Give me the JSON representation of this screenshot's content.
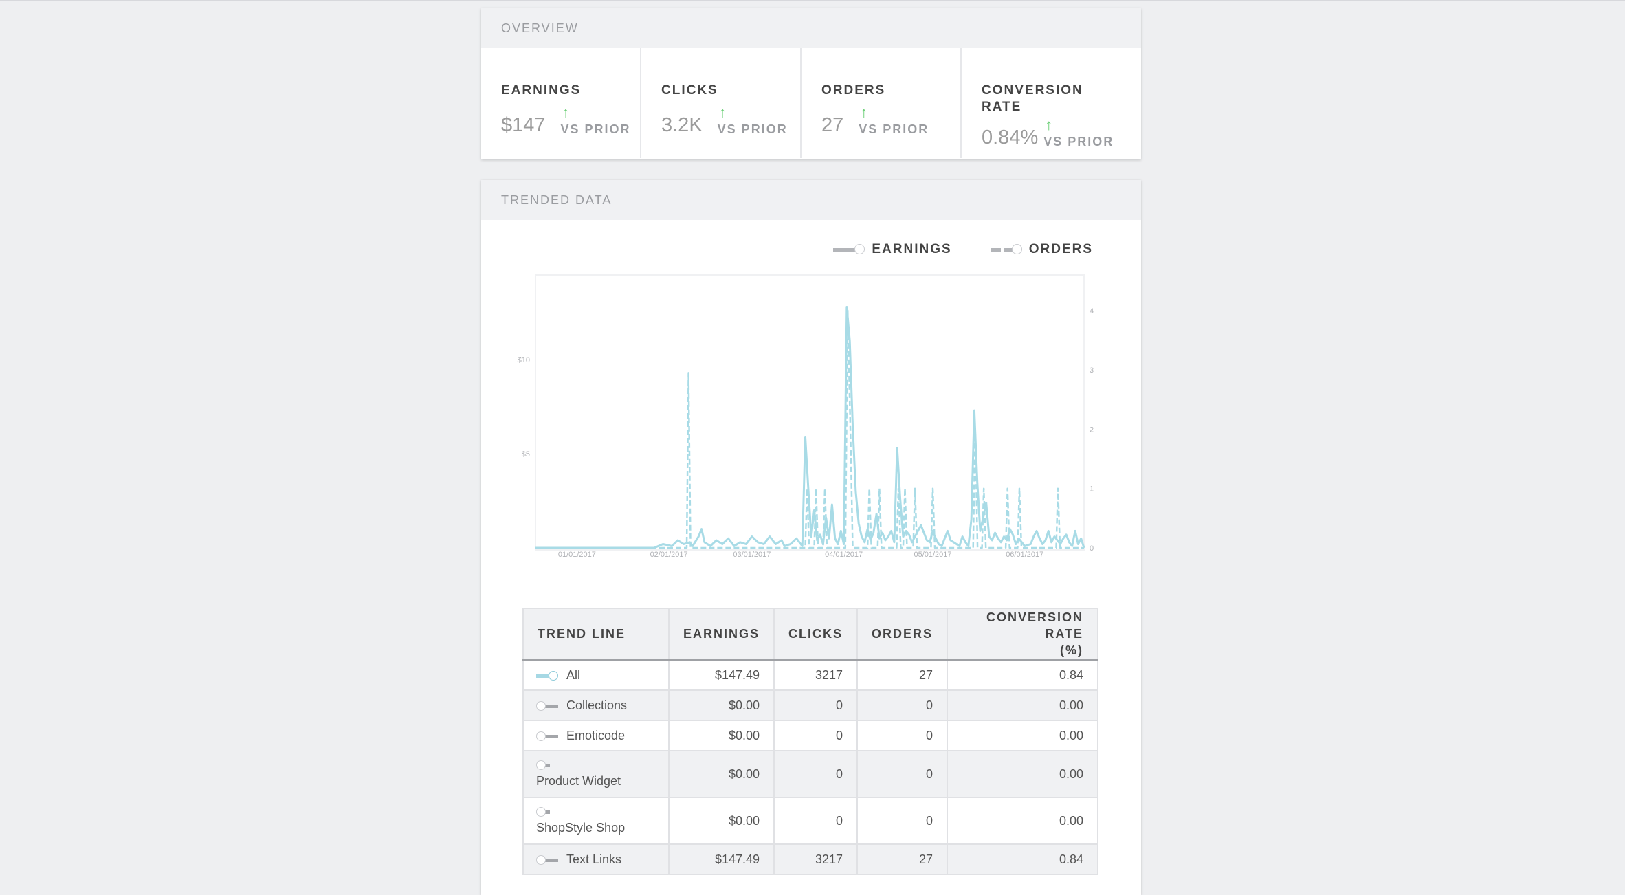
{
  "overview": {
    "title": "OVERVIEW",
    "metrics": [
      {
        "label": "EARNINGS",
        "value": "$147",
        "change": "VS PRIOR"
      },
      {
        "label": "CLICKS",
        "value": "3.2K",
        "change": "VS PRIOR"
      },
      {
        "label": "ORDERS",
        "value": "27",
        "change": "VS PRIOR"
      },
      {
        "label": "CONVERSION RATE",
        "value": "0.84%",
        "change": "VS PRIOR"
      }
    ],
    "arrow_glyph": "↑",
    "arrow_color": "#6fd07a"
  },
  "trended": {
    "title": "TRENDED DATA",
    "legend": {
      "earnings": "EARNINGS",
      "orders": "ORDERS"
    }
  },
  "chart_data": {
    "type": "line",
    "title": "",
    "xlabel": "",
    "ylabel": "",
    "x_ticks": [
      "01/01/2017",
      "02/01/2017",
      "03/01/2017",
      "04/01/2017",
      "05/01/2017",
      "06/01/2017"
    ],
    "y_left_ticks": [
      "$5",
      "$10"
    ],
    "y_right_ticks": [
      "0",
      "1",
      "2",
      "3",
      "4"
    ],
    "ylim_left": [
      0,
      14.5
    ],
    "ylim_right": [
      0,
      4.6
    ],
    "day_start": 0,
    "day_end": 185,
    "series": [
      {
        "name": "EARNINGS",
        "axis": "left",
        "style": "solid",
        "color": "#a8dbe6",
        "points": [
          [
            0,
            0
          ],
          [
            40,
            0
          ],
          [
            43,
            0.2
          ],
          [
            46,
            0.1
          ],
          [
            48,
            0.4
          ],
          [
            50,
            0.2
          ],
          [
            52,
            0.3
          ],
          [
            53,
            0.1
          ],
          [
            55,
            0.6
          ],
          [
            56,
            1
          ],
          [
            57,
            0.3
          ],
          [
            59,
            0.1
          ],
          [
            61,
            0.4
          ],
          [
            63,
            0.2
          ],
          [
            65,
            0.5
          ],
          [
            67,
            0.1
          ],
          [
            69,
            0.3
          ],
          [
            71,
            0.2
          ],
          [
            73,
            0.6
          ],
          [
            75,
            0.3
          ],
          [
            77,
            0.2
          ],
          [
            79,
            0.6
          ],
          [
            81,
            0.2
          ],
          [
            83,
            0.4
          ],
          [
            84,
            0.1
          ],
          [
            86,
            0.2
          ],
          [
            88,
            0.5
          ],
          [
            90,
            0.1
          ],
          [
            91,
            5.9
          ],
          [
            92,
            3.2
          ],
          [
            93,
            0.6
          ],
          [
            94,
            2
          ],
          [
            95,
            0.4
          ],
          [
            96,
            0.7
          ],
          [
            97,
            0.2
          ],
          [
            98,
            1.6
          ],
          [
            99,
            0.5
          ],
          [
            100,
            2.3
          ],
          [
            101,
            0.5
          ],
          [
            102,
            0.2
          ],
          [
            103,
            0.9
          ],
          [
            104,
            0.2
          ],
          [
            105,
            12.8
          ],
          [
            106,
            11
          ],
          [
            107,
            6.5
          ],
          [
            108,
            3
          ],
          [
            109,
            1.3
          ],
          [
            110,
            0.6
          ],
          [
            111,
            0.3
          ],
          [
            112,
            1
          ],
          [
            113,
            0.4
          ],
          [
            114,
            0.8
          ],
          [
            115,
            1.8
          ],
          [
            116,
            0.5
          ],
          [
            117,
            0.8
          ],
          [
            118,
            0.4
          ],
          [
            119,
            0.6
          ],
          [
            120,
            0.9
          ],
          [
            121,
            0.3
          ],
          [
            122,
            5.3
          ],
          [
            123,
            2.6
          ],
          [
            124,
            0.6
          ],
          [
            125,
            0.9
          ],
          [
            126,
            0.7
          ],
          [
            127,
            0.3
          ],
          [
            128,
            0.6
          ],
          [
            129,
            0.9
          ],
          [
            130,
            1.2
          ],
          [
            131,
            0.8
          ],
          [
            132,
            0.4
          ],
          [
            133,
            0.3
          ],
          [
            134,
            0.9
          ],
          [
            135,
            0.5
          ],
          [
            136,
            0.2
          ],
          [
            137,
            0.1
          ],
          [
            138,
            0.5
          ],
          [
            139,
            0.9
          ],
          [
            140,
            0.4
          ],
          [
            142,
            0.2
          ],
          [
            143,
            0.1
          ],
          [
            144,
            0.6
          ],
          [
            145,
            0.3
          ],
          [
            146,
            0.1
          ],
          [
            147,
            1.5
          ],
          [
            148,
            7.3
          ],
          [
            149,
            3.5
          ],
          [
            150,
            0.9
          ],
          [
            151,
            1.6
          ],
          [
            152,
            2.4
          ],
          [
            153,
            0.6
          ],
          [
            154,
            0.4
          ],
          [
            155,
            0.8
          ],
          [
            156,
            0.5
          ],
          [
            157,
            0.3
          ],
          [
            158,
            0.6
          ],
          [
            159,
            0.4
          ],
          [
            160,
            1
          ],
          [
            161,
            0.7
          ],
          [
            162,
            0.2
          ],
          [
            163,
            0.5
          ],
          [
            164,
            0.3
          ],
          [
            165,
            0.1
          ],
          [
            167,
            0.2
          ],
          [
            168,
            0.6
          ],
          [
            169,
            0.9
          ],
          [
            170,
            0.5
          ],
          [
            171,
            0.2
          ],
          [
            172,
            0.4
          ],
          [
            173,
            0.9
          ],
          [
            174,
            0.3
          ],
          [
            175,
            0.6
          ],
          [
            176,
            0.4
          ],
          [
            177,
            0.2
          ],
          [
            178,
            0.5
          ],
          [
            179,
            0.7
          ],
          [
            180,
            0.3
          ],
          [
            181,
            0.1
          ],
          [
            182,
            0.9
          ],
          [
            183,
            0.2
          ],
          [
            184,
            0.5
          ],
          [
            185,
            0
          ]
        ]
      },
      {
        "name": "ORDERS",
        "axis": "right",
        "style": "dashed",
        "color": "#a8dbe6",
        "points": [
          [
            0,
            0
          ],
          [
            51,
            0
          ],
          [
            51.6,
            2.95
          ],
          [
            52.3,
            0
          ],
          [
            91,
            0
          ],
          [
            91.6,
            1
          ],
          [
            92.3,
            0
          ],
          [
            94,
            0
          ],
          [
            94.6,
            1
          ],
          [
            95.3,
            0
          ],
          [
            97,
            0
          ],
          [
            97.6,
            1
          ],
          [
            98.3,
            0
          ],
          [
            104.5,
            0
          ],
          [
            105.3,
            4
          ],
          [
            106.2,
            2
          ],
          [
            107,
            0
          ],
          [
            112,
            0
          ],
          [
            112.6,
            1
          ],
          [
            113.3,
            0
          ],
          [
            115.4,
            0
          ],
          [
            116,
            1
          ],
          [
            116.7,
            0
          ],
          [
            121.8,
            0
          ],
          [
            122.4,
            1
          ],
          [
            123.2,
            0
          ],
          [
            124,
            0
          ],
          [
            124.6,
            1
          ],
          [
            125.3,
            0
          ],
          [
            127.4,
            0
          ],
          [
            128,
            1
          ],
          [
            128.7,
            0
          ],
          [
            133.4,
            0
          ],
          [
            134,
            1
          ],
          [
            134.7,
            0
          ],
          [
            147.6,
            0
          ],
          [
            148.3,
            2
          ],
          [
            149.1,
            0
          ],
          [
            150.6,
            0
          ],
          [
            151.2,
            1
          ],
          [
            151.9,
            0
          ],
          [
            158.6,
            0
          ],
          [
            159.2,
            1
          ],
          [
            159.9,
            0
          ],
          [
            162.6,
            0
          ],
          [
            163.2,
            1
          ],
          [
            163.9,
            0
          ],
          [
            175.6,
            0
          ],
          [
            176.2,
            1
          ],
          [
            176.9,
            0
          ],
          [
            185,
            0
          ]
        ]
      }
    ]
  },
  "table": {
    "headers": {
      "trend_line": "TREND LINE",
      "earnings": "EARNINGS",
      "clicks": "CLICKS",
      "orders": "ORDERS",
      "conversion_line1": "CONVERSION RATE",
      "conversion_line2": "(%)"
    },
    "rows": [
      {
        "name": "All",
        "earnings": "$147.49",
        "clicks": "3217",
        "orders": "27",
        "conversion": "0.84"
      },
      {
        "name": "Collections",
        "earnings": "$0.00",
        "clicks": "0",
        "orders": "0",
        "conversion": "0.00"
      },
      {
        "name": "Emoticode",
        "earnings": "$0.00",
        "clicks": "0",
        "orders": "0",
        "conversion": "0.00"
      },
      {
        "name": "Product Widget",
        "earnings": "$0.00",
        "clicks": "0",
        "orders": "0",
        "conversion": "0.00"
      },
      {
        "name": "ShopStyle Shop",
        "earnings": "$0.00",
        "clicks": "0",
        "orders": "0",
        "conversion": "0.00"
      },
      {
        "name": "Text Links",
        "earnings": "$147.49",
        "clicks": "3217",
        "orders": "27",
        "conversion": "0.84"
      }
    ]
  }
}
